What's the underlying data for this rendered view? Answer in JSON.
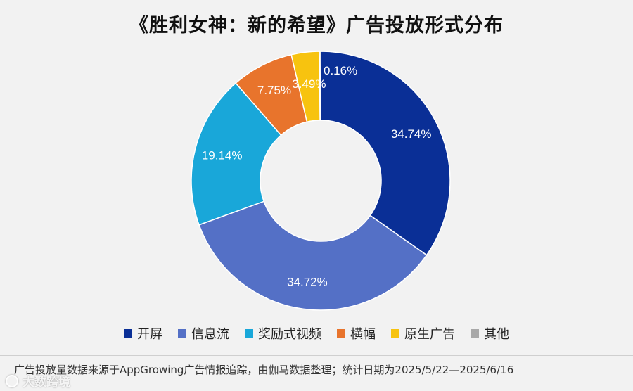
{
  "chart_data": {
    "type": "pie",
    "variant": "donut",
    "title": "《胜利女神：新的希望》广告投放形式分布",
    "series": [
      {
        "name": "开屏",
        "value": 34.74,
        "label": "34.74%",
        "color": "#0a2f96"
      },
      {
        "name": "信息流",
        "value": 34.72,
        "label": "34.72%",
        "color": "#5470c6"
      },
      {
        "name": "奖励式视频",
        "value": 19.14,
        "label": "19.14%",
        "color": "#19a7d9"
      },
      {
        "name": "横幅",
        "value": 7.75,
        "label": "7.75%",
        "color": "#e8742c"
      },
      {
        "name": "原生广告",
        "value": 3.49,
        "label": "3.49%",
        "color": "#f7c30f"
      },
      {
        "name": "其他",
        "value": 0.16,
        "label": "0.16%",
        "color": "#a8a8a8"
      }
    ],
    "legend_position": "bottom"
  },
  "footer": {
    "source": "广告投放量数据来源于AppGrowing广告情报追踪，由伽马数据整理；统计日期为2025/5/22—2025/6/16"
  },
  "watermark": {
    "text": "大数跨境"
  }
}
